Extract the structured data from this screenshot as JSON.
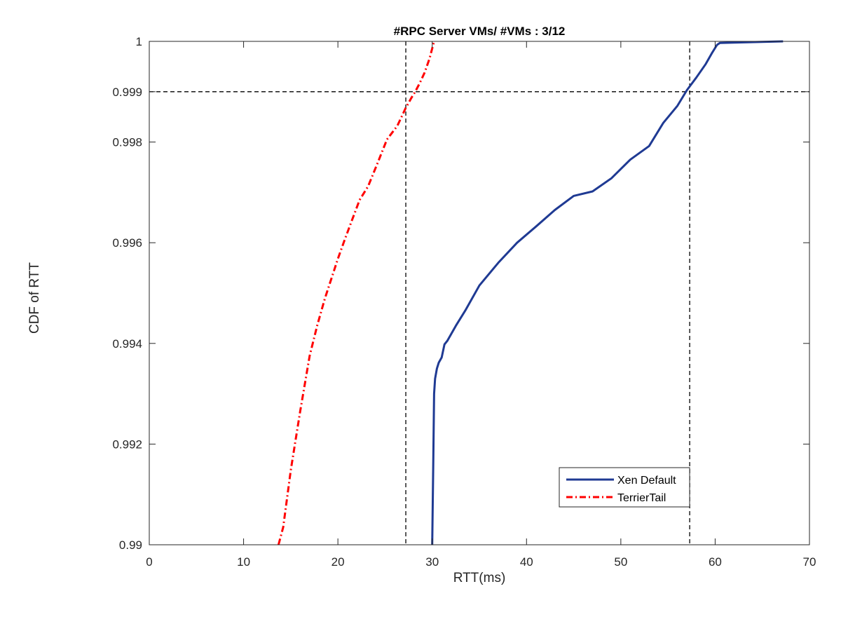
{
  "chart_data": {
    "type": "line",
    "title": "#RPC Server VMs/ #VMs  : 3/12",
    "xlabel": "RTT(ms)",
    "ylabel": "CDF of RTT",
    "xlim": [
      0,
      70
    ],
    "ylim": [
      0.99,
      1
    ],
    "xticks": [
      0,
      10,
      20,
      30,
      40,
      50,
      60,
      70
    ],
    "xtick_labels": [
      "0",
      "10",
      "20",
      "30",
      "40",
      "50",
      "60",
      "70"
    ],
    "yticks": [
      0.99,
      0.992,
      0.994,
      0.996,
      0.998,
      0.999,
      1
    ],
    "ytick_labels": [
      "0.99",
      "0.992",
      "0.994",
      "0.996",
      "0.998",
      "0.999",
      "1"
    ],
    "grid": false,
    "legend_position": "bottom-right",
    "series": [
      {
        "name": "Xen Default",
        "color": "#1f3a93",
        "style": "solid",
        "x": [
          30.0,
          30.1,
          30.2,
          30.3,
          30.5,
          30.7,
          31.0,
          31.3,
          31.6,
          32.5,
          33.5,
          35.0,
          37.0,
          39.0,
          41.0,
          43.0,
          45.0,
          47.0,
          49.0,
          51.0,
          53.0,
          54.5,
          56.0,
          57.0,
          58.0,
          59.0,
          59.7,
          60.2,
          60.5,
          67.2
        ],
        "y": [
          0.99,
          0.9915,
          0.993,
          0.9933,
          0.9935,
          0.99362,
          0.99372,
          0.99398,
          0.99405,
          0.99435,
          0.99465,
          0.99515,
          0.9956,
          0.996,
          0.99632,
          0.99665,
          0.99693,
          0.99702,
          0.99728,
          0.99765,
          0.99792,
          0.99838,
          0.99872,
          0.99903,
          0.99928,
          0.99955,
          0.99978,
          0.99993,
          0.99997,
          1.0
        ]
      },
      {
        "name": "TerrierTail",
        "color": "#ff0000",
        "style": "dash-dot",
        "x": [
          13.7,
          14.2,
          15.0,
          16.0,
          17.0,
          17.8,
          18.6,
          19.3,
          20.0,
          20.7,
          21.5,
          22.3,
          23.2,
          24.2,
          25.2,
          26.3,
          27.2,
          27.8,
          28.2,
          28.7,
          29.2,
          29.7,
          30.2
        ],
        "y": [
          0.99,
          0.99035,
          0.99148,
          0.99265,
          0.99375,
          0.99435,
          0.99488,
          0.99528,
          0.99568,
          0.99605,
          0.99645,
          0.99685,
          0.99712,
          0.99758,
          0.99805,
          0.99832,
          0.99868,
          0.99888,
          0.999,
          0.99918,
          0.99938,
          0.99965,
          1.0
        ]
      }
    ],
    "reference_lines": {
      "horizontal": [
        0.999
      ],
      "vertical": [
        27.2,
        57.3
      ],
      "style": "dashed",
      "color": "#000000"
    }
  }
}
